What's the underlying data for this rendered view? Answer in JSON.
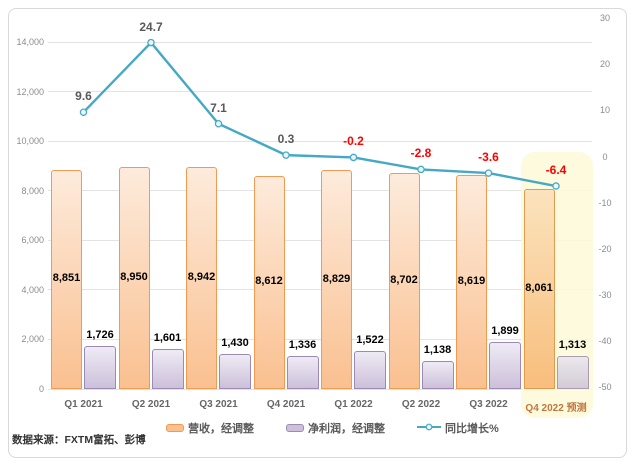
{
  "chart_data": {
    "type": "combo-bar-line",
    "title": "",
    "categories": [
      "Q1 2021",
      "Q2 2021",
      "Q3 2021",
      "Q4 2021",
      "Q1 2022",
      "Q2 2022",
      "Q3 2022",
      "Q4 2022 预测"
    ],
    "forecast_category_index": 7,
    "series": [
      {
        "name": "营收，经调整",
        "type": "bar",
        "axis": "left",
        "values": [
          8851,
          8950,
          8942,
          8612,
          8829,
          8702,
          8619,
          8061
        ],
        "labels": [
          "8,851",
          "8,950",
          "8,942",
          "8,612",
          "8,829",
          "8,702",
          "8,619",
          "8,061"
        ]
      },
      {
        "name": "净利润，经调整",
        "type": "bar",
        "axis": "left",
        "values": [
          1726,
          1601,
          1430,
          1336,
          1522,
          1138,
          1899,
          1313
        ],
        "labels": [
          "1,726",
          "1,601",
          "1,430",
          "1,336",
          "1,522",
          "1,138",
          "1,899",
          "1,313"
        ]
      },
      {
        "name": "同比增长%",
        "type": "line",
        "axis": "right",
        "values": [
          9.6,
          24.7,
          7.1,
          0.3,
          -0.2,
          -2.8,
          -3.6,
          -6.4
        ],
        "labels": [
          "9.6",
          "24.7",
          "7.1",
          "0.3",
          "-0.2",
          "-2.8",
          "-3.6",
          "-6.4"
        ]
      }
    ],
    "left_axis": {
      "min": 0,
      "max": 14000,
      "tick_values": [
        0,
        2000,
        4000,
        6000,
        8000,
        10000,
        12000,
        14000
      ],
      "tick_labels": [
        "0",
        "2,000",
        "4,000",
        "6,000",
        "8,000",
        "10,000",
        "12,000",
        "14,000"
      ]
    },
    "right_axis": {
      "min": -50,
      "max": 30,
      "tick_values": [
        30,
        20,
        10,
        0,
        -10,
        -20,
        -30,
        -40,
        -50
      ],
      "tick_labels": [
        "30",
        "20",
        "10",
        "0",
        "-10",
        "-20",
        "-30",
        "-40",
        "-50"
      ]
    },
    "grid": true,
    "legend_position": "bottom"
  },
  "legend": [
    {
      "label": "营收，经调整",
      "type": "bar"
    },
    {
      "label": "净利润，经调整",
      "type": "bar"
    },
    {
      "label": "同比增长%",
      "type": "line"
    }
  ],
  "source_note": "数据来源：FXTM富拓、彭博",
  "colors": {
    "revenue_fill_top": "#FDEBDC",
    "revenue_fill_bottom": "#FAC090",
    "revenue_border": "#F19A53",
    "revenue_forecast_fill_top": "#FBE3BD",
    "revenue_forecast_fill_bottom": "#F8BE7D",
    "revenue_forecast_border": "#E09B52",
    "profit_fill_top": "#EFEBF5",
    "profit_fill_bottom": "#CCC0DA",
    "profit_border": "#9C8AB5",
    "profit_forecast_fill_top": "#ECE8EC",
    "profit_forecast_fill_bottom": "#D3CBD7",
    "profit_forecast_border": "#A89CB1",
    "line": "#45A9C5",
    "marker_fill": "#EAF6FA",
    "label_positive": "#595959",
    "label_negative": "#FF0000",
    "value_text": "#000000",
    "highlight_bg": "rgba(253,249,215,0.85)",
    "forecast_category_color": "#C0763E",
    "grid": "#E3E3E3",
    "axis_text": "#8C8C8C",
    "category_text": "#666666",
    "legend_text": "#595959",
    "border": "#D9D9D9"
  }
}
